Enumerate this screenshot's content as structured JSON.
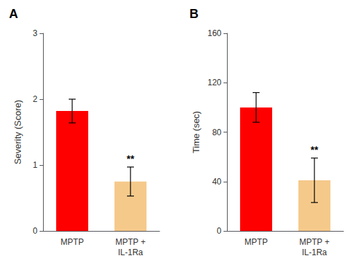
{
  "chart_data": [
    {
      "type": "bar",
      "title": "A",
      "categories": [
        "MPTP",
        "MPTP +\nIL-1Ra"
      ],
      "values": [
        1.82,
        0.75
      ],
      "errors": [
        0.18,
        0.22
      ],
      "colors": [
        "#ff0000",
        "#f5c98a"
      ],
      "ylabel": "Severity (Score)",
      "ylim": [
        0,
        3
      ],
      "yticks": [
        0,
        1,
        2,
        3
      ],
      "annotations": [
        {
          "category": "MPTP +\nIL-1Ra",
          "text": "**"
        }
      ],
      "grid": false
    },
    {
      "type": "bar",
      "title": "B",
      "categories": [
        "MPTP",
        "MPTP +\nIL-1Ra"
      ],
      "values": [
        100,
        41
      ],
      "errors": [
        12,
        18
      ],
      "colors": [
        "#ff0000",
        "#f5c98a"
      ],
      "ylabel": "Time (sec)",
      "ylim": [
        0,
        160
      ],
      "yticks": [
        0,
        40,
        80,
        120,
        160
      ],
      "annotations": [
        {
          "category": "MPTP +\nIL-1Ra",
          "text": "**"
        }
      ],
      "grid": false
    }
  ]
}
